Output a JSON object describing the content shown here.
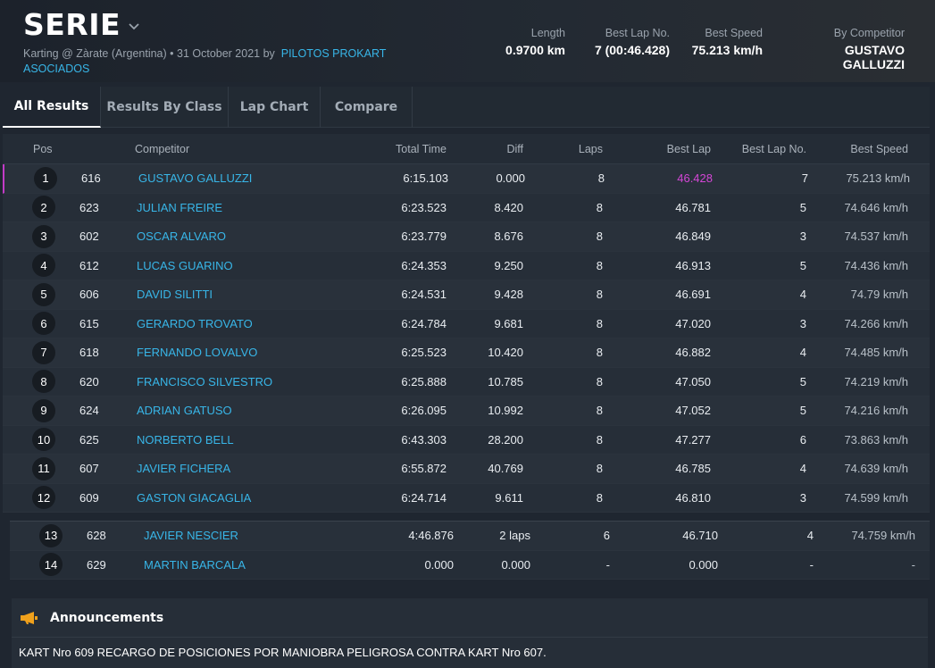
{
  "header": {
    "title": "SERIE",
    "subtitle_prefix": "Karting @ Zàrate (Argentina) • 31 October 2021 by",
    "organizer": "PILOTOS PROKART ASOCIADOS",
    "stats": [
      {
        "label": "Length",
        "value": "0.9700 km"
      },
      {
        "label": "Best Lap No.",
        "value": "7 (00:46.428)"
      },
      {
        "label": "Best Speed",
        "value": "75.213 km/h"
      },
      {
        "label": "By Competitor",
        "value": "GUSTAVO GALLUZZI"
      }
    ]
  },
  "tabs": [
    "All Results",
    "Results By Class",
    "Lap Chart",
    "Compare"
  ],
  "table": {
    "headers": {
      "pos": "Pos",
      "competitor": "Competitor",
      "total_time": "Total Time",
      "diff": "Diff",
      "laps": "Laps",
      "best_lap": "Best Lap",
      "best_lap_no": "Best Lap No.",
      "best_speed": "Best Speed"
    },
    "rows": [
      {
        "pos": "1",
        "num": "616",
        "name": "GUSTAVO GALLUZZI",
        "time": "6:15.103",
        "diff": "0.000",
        "laps": "8",
        "best": "46.428",
        "bln": "7",
        "speed": "75.213 km/h"
      },
      {
        "pos": "2",
        "num": "623",
        "name": "JULIAN FREIRE",
        "time": "6:23.523",
        "diff": "8.420",
        "laps": "8",
        "best": "46.781",
        "bln": "5",
        "speed": "74.646 km/h"
      },
      {
        "pos": "3",
        "num": "602",
        "name": "OSCAR ALVARO",
        "time": "6:23.779",
        "diff": "8.676",
        "laps": "8",
        "best": "46.849",
        "bln": "3",
        "speed": "74.537 km/h"
      },
      {
        "pos": "4",
        "num": "612",
        "name": "LUCAS GUARINO",
        "time": "6:24.353",
        "diff": "9.250",
        "laps": "8",
        "best": "46.913",
        "bln": "5",
        "speed": "74.436 km/h"
      },
      {
        "pos": "5",
        "num": "606",
        "name": "DAVID SILITTI",
        "time": "6:24.531",
        "diff": "9.428",
        "laps": "8",
        "best": "46.691",
        "bln": "4",
        "speed": "74.79 km/h"
      },
      {
        "pos": "6",
        "num": "615",
        "name": "GERARDO TROVATO",
        "time": "6:24.784",
        "diff": "9.681",
        "laps": "8",
        "best": "47.020",
        "bln": "3",
        "speed": "74.266 km/h"
      },
      {
        "pos": "7",
        "num": "618",
        "name": "FERNANDO LOVALVO",
        "time": "6:25.523",
        "diff": "10.420",
        "laps": "8",
        "best": "46.882",
        "bln": "4",
        "speed": "74.485 km/h"
      },
      {
        "pos": "8",
        "num": "620",
        "name": "FRANCISCO SILVESTRO",
        "time": "6:25.888",
        "diff": "10.785",
        "laps": "8",
        "best": "47.050",
        "bln": "5",
        "speed": "74.219 km/h"
      },
      {
        "pos": "9",
        "num": "624",
        "name": "ADRIAN GATUSO",
        "time": "6:26.095",
        "diff": "10.992",
        "laps": "8",
        "best": "47.052",
        "bln": "5",
        "speed": "74.216 km/h"
      },
      {
        "pos": "10",
        "num": "625",
        "name": "NORBERTO BELL",
        "time": "6:43.303",
        "diff": "28.200",
        "laps": "8",
        "best": "47.277",
        "bln": "6",
        "speed": "73.863 km/h"
      },
      {
        "pos": "11",
        "num": "607",
        "name": "JAVIER FICHERA",
        "time": "6:55.872",
        "diff": "40.769",
        "laps": "8",
        "best": "46.785",
        "bln": "4",
        "speed": "74.639 km/h"
      },
      {
        "pos": "12",
        "num": "609",
        "name": "GASTON GIACAGLIA",
        "time": "6:24.714",
        "diff": "9.611",
        "laps": "8",
        "best": "46.810",
        "bln": "3",
        "speed": "74.599 km/h"
      }
    ],
    "rows_unclassified": [
      {
        "pos": "13",
        "num": "628",
        "name": "JAVIER NESCIER",
        "time": "4:46.876",
        "diff": "2 laps",
        "laps": "6",
        "best": "46.710",
        "bln": "4",
        "speed": "74.759 km/h"
      },
      {
        "pos": "14",
        "num": "629",
        "name": "MARTIN BARCALA",
        "time": "0.000",
        "diff": "0.000",
        "laps": "-",
        "best": "0.000",
        "bln": "-",
        "speed": "-"
      }
    ]
  },
  "announcements": {
    "title": "Announcements",
    "text": "KART Nro 609 RECARGO DE POSICIONES POR MANIOBRA PELIGROSA CONTRA KART Nro 607."
  },
  "colors": {
    "accent_link": "#38b6e8",
    "best_lap_highlight": "#d446d6",
    "megaphone": "#f0a11c"
  }
}
